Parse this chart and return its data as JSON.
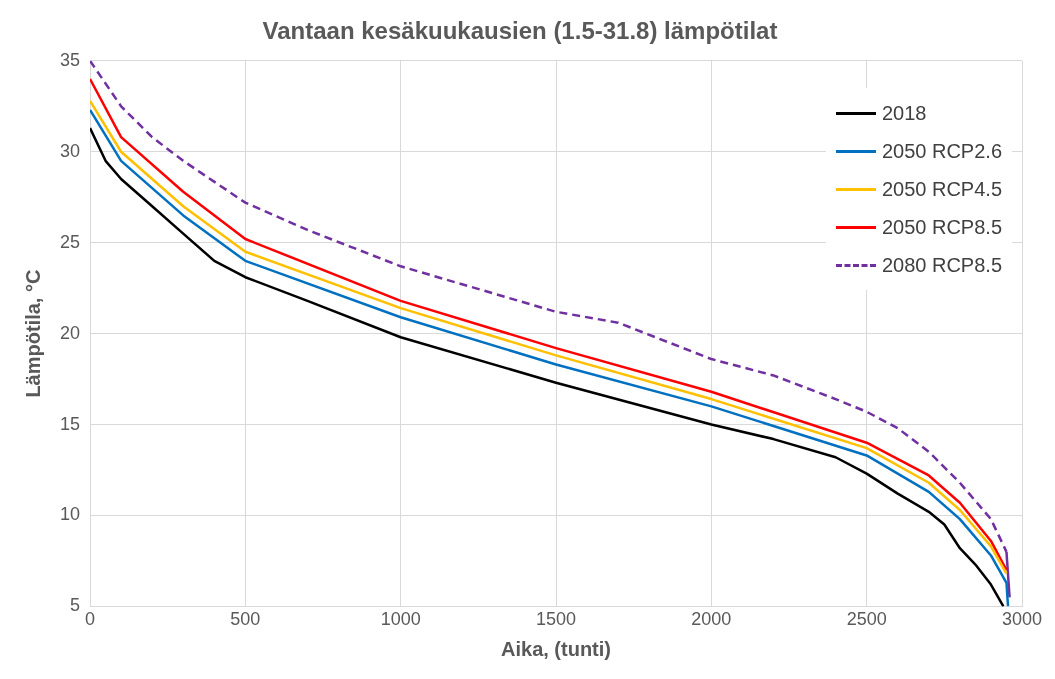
{
  "chart_data": {
    "type": "line",
    "title": "Vantaan kesäkuukausien (1.5-31.8) lämpötilat",
    "xlabel": "Aika, (tunti)",
    "ylabel": "Lämpötila, °C",
    "xlim": [
      0,
      3000
    ],
    "xticks": [
      0,
      500,
      1000,
      1500,
      2000,
      2500,
      3000
    ],
    "ylim": [
      5,
      35
    ],
    "yticks": [
      5,
      10,
      15,
      20,
      25,
      30,
      35
    ],
    "grid": true,
    "legend": "top right",
    "marker": "none",
    "series": [
      {
        "name": "2018",
        "color": "#000000",
        "line_style": "solid",
        "x": [
          0,
          50,
          100,
          200,
          300,
          400,
          500,
          700,
          1000,
          1500,
          2000,
          2200,
          2400,
          2500,
          2600,
          2700,
          2750,
          2800,
          2850,
          2900,
          2940
        ],
        "values": [
          31.3,
          29.5,
          28.5,
          27,
          25.5,
          24,
          23.1,
          21.8,
          19.8,
          17.3,
          15,
          14.2,
          13.2,
          12.3,
          11.2,
          10.2,
          9.5,
          8.2,
          7.3,
          6.2,
          5
        ]
      },
      {
        "name": "2050 RCP2.6",
        "color": "#0070c0",
        "line_style": "solid",
        "x": [
          0,
          100,
          300,
          500,
          1000,
          1500,
          2000,
          2500,
          2700,
          2800,
          2900,
          2950,
          2955
        ],
        "values": [
          32.3,
          29.5,
          26.5,
          24,
          20.9,
          18.3,
          16,
          13.3,
          11.3,
          9.8,
          7.8,
          6.3,
          5
        ]
      },
      {
        "name": "2050 RCP4.5",
        "color": "#ffc000",
        "line_style": "solid",
        "x": [
          0,
          100,
          300,
          500,
          1000,
          1500,
          2000,
          2500,
          2700,
          2800,
          2900,
          2950
        ],
        "values": [
          32.8,
          30,
          27,
          24.5,
          21.4,
          18.8,
          16.4,
          13.7,
          11.8,
          10.3,
          8.3,
          6.8
        ]
      },
      {
        "name": "2050 RCP8.5",
        "color": "#ff0000",
        "line_style": "solid",
        "x": [
          0,
          100,
          300,
          500,
          1000,
          1500,
          2000,
          2500,
          2700,
          2800,
          2900,
          2950
        ],
        "values": [
          34,
          30.8,
          27.8,
          25.2,
          21.8,
          19.2,
          16.8,
          14,
          12.2,
          10.7,
          8.6,
          7
        ]
      },
      {
        "name": "2080 RCP8.5",
        "color": "#7030a0",
        "line_style": "dashed",
        "x": [
          0,
          100,
          200,
          300,
          500,
          700,
          1000,
          1500,
          1700,
          2000,
          2200,
          2400,
          2500,
          2600,
          2700,
          2800,
          2900,
          2950,
          2960
        ],
        "values": [
          35,
          32.5,
          30.8,
          29.5,
          27.2,
          25.7,
          23.7,
          21.2,
          20.6,
          18.6,
          17.7,
          16.4,
          15.7,
          14.8,
          13.5,
          11.8,
          9.8,
          8,
          5.5
        ]
      }
    ]
  }
}
